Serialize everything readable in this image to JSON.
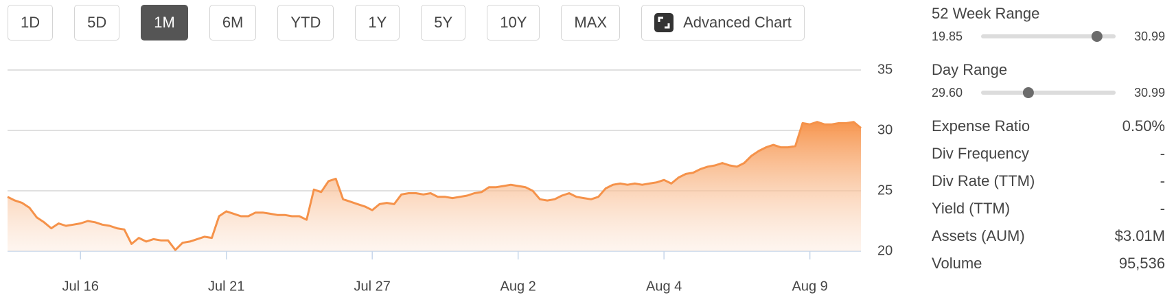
{
  "buttons": [
    "1D",
    "5D",
    "1M",
    "6M",
    "YTD",
    "1Y",
    "5Y",
    "10Y",
    "MAX",
    "Advanced Chart"
  ],
  "selected_button": 2,
  "chart_data": {
    "type": "area",
    "categories": [
      null,
      null,
      null,
      null,
      null,
      null,
      null,
      null,
      null,
      null,
      "Jul 16",
      null,
      null,
      null,
      null,
      null,
      null,
      null,
      null,
      null,
      null,
      null,
      null,
      null,
      null,
      null,
      null,
      null,
      null,
      null,
      "Jul 21",
      null,
      null,
      null,
      null,
      null,
      null,
      null,
      null,
      null,
      null,
      null,
      null,
      null,
      null,
      null,
      null,
      null,
      null,
      null,
      "Jul 27",
      null,
      null,
      null,
      null,
      null,
      null,
      null,
      null,
      null,
      null,
      null,
      null,
      null,
      null,
      null,
      null,
      null,
      null,
      null,
      "Aug 2",
      null,
      null,
      null,
      null,
      null,
      null,
      null,
      null,
      null,
      null,
      null,
      null,
      null,
      null,
      null,
      null,
      null,
      null,
      null,
      "Aug 4",
      null,
      null,
      null,
      null,
      null,
      null,
      null,
      null,
      null,
      null,
      null,
      null,
      null,
      null,
      null,
      null,
      null,
      null,
      null,
      "Aug 9",
      null,
      null,
      null,
      null,
      null,
      null,
      null
    ],
    "series": [
      {
        "color": "#f5924a",
        "values": [
          24.5,
          24.2,
          24.0,
          23.6,
          22.8,
          22.4,
          21.9,
          22.3,
          22.1,
          22.2,
          22.3,
          22.5,
          22.4,
          22.2,
          22.1,
          21.9,
          21.8,
          20.6,
          21.1,
          20.8,
          21.0,
          20.9,
          20.9,
          20.1,
          20.7,
          20.8,
          21.0,
          21.2,
          21.1,
          22.9,
          23.3,
          23.1,
          22.9,
          22.9,
          23.2,
          23.2,
          23.1,
          23.0,
          23.0,
          22.9,
          22.9,
          22.6,
          25.1,
          24.9,
          25.8,
          26.0,
          24.3,
          24.1,
          23.9,
          23.7,
          23.4,
          23.9,
          24.0,
          23.9,
          24.7,
          24.8,
          24.8,
          24.7,
          24.8,
          24.5,
          24.5,
          24.4,
          24.5,
          24.6,
          24.8,
          24.9,
          25.3,
          25.3,
          25.4,
          25.5,
          25.4,
          25.3,
          25.0,
          24.3,
          24.2,
          24.3,
          24.6,
          24.8,
          24.5,
          24.4,
          24.3,
          24.5,
          25.2,
          25.5,
          25.6,
          25.5,
          25.6,
          25.5,
          25.6,
          25.7,
          25.9,
          25.6,
          26.1,
          26.4,
          26.5,
          26.8,
          27.0,
          27.1,
          27.3,
          27.1,
          27.0,
          27.3,
          27.9,
          28.3,
          28.6,
          28.8,
          28.6,
          28.6,
          28.7,
          30.6,
          30.5,
          30.7,
          30.5,
          30.5,
          30.6,
          30.6,
          30.7,
          30.2
        ]
      }
    ],
    "ylim": [
      20,
      35
    ],
    "yticks": [
      20,
      25,
      30,
      35
    ],
    "grid": true
  },
  "ranges": [
    {
      "label": "52 Week Range",
      "low": 19.85,
      "high": 30.99,
      "current": 29.8
    },
    {
      "label": "Day Range",
      "low": {
        "value": 29.6,
        "label": "29.60"
      },
      "high": 30.99,
      "current": 30.07
    }
  ],
  "stats": [
    {
      "label": "Expense Ratio",
      "value": "0.50%"
    },
    {
      "label": "Div Frequency",
      "value": "-"
    },
    {
      "label": "Div Rate (TTM)",
      "value": "-"
    },
    {
      "label": "Yield (TTM)",
      "value": "-"
    },
    {
      "label": "Assets (AUM)",
      "value": "$3.01M"
    },
    {
      "label": "Volume",
      "value": "95,536"
    }
  ]
}
